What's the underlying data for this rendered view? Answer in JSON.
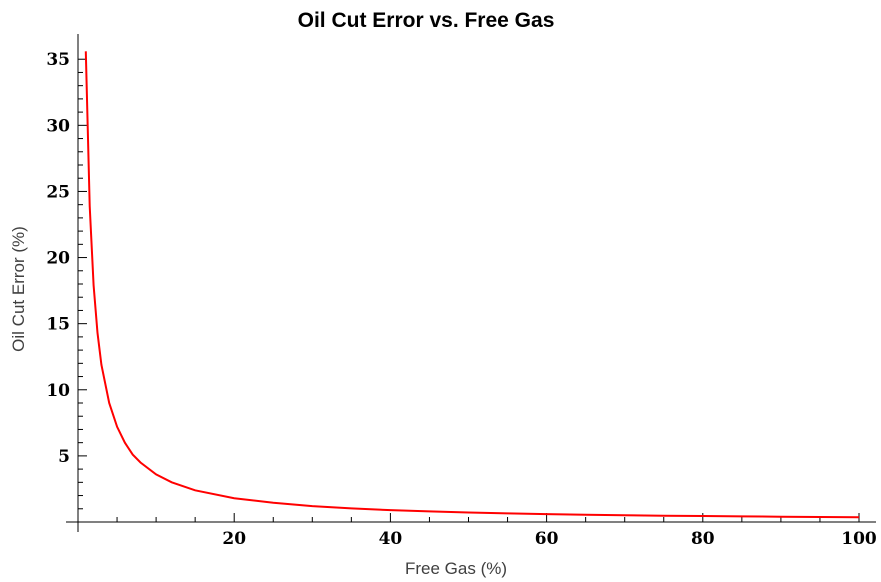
{
  "chart_data": {
    "type": "line",
    "title": "Oil Cut Error vs. Free Gas",
    "xlabel": "Free Gas (%)",
    "ylabel": "Oil Cut Error (%)",
    "xlim": [
      0,
      100
    ],
    "ylim": [
      0,
      36
    ],
    "x_ticks": [
      20,
      40,
      60,
      80,
      100
    ],
    "y_ticks": [
      5,
      10,
      15,
      20,
      25,
      30,
      35
    ],
    "grid": false,
    "line_color": "#ff0000",
    "series": [
      {
        "x": [
          1,
          1.5,
          2,
          2.5,
          3,
          4,
          5,
          6,
          7,
          8,
          10,
          12,
          15,
          20,
          25,
          30,
          35,
          40,
          45,
          50,
          55,
          60,
          65,
          70,
          75,
          80,
          85,
          90,
          95,
          100
        ],
        "y": [
          35.6,
          23.9,
          17.9,
          14.3,
          11.9,
          9.0,
          7.2,
          6.0,
          5.1,
          4.5,
          3.6,
          3.0,
          2.4,
          1.8,
          1.45,
          1.2,
          1.03,
          0.9,
          0.8,
          0.72,
          0.65,
          0.6,
          0.55,
          0.51,
          0.48,
          0.45,
          0.42,
          0.4,
          0.38,
          0.36
        ]
      }
    ]
  }
}
